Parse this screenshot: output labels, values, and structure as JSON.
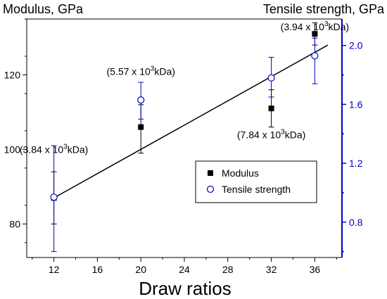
{
  "chart_data": {
    "type": "scatter",
    "xlabel": "Draw ratios",
    "ylabel_left": "Modulus, GPa",
    "ylabel_right": "Tensile strength, GPa",
    "x_ticks": [
      12,
      16,
      20,
      24,
      28,
      32,
      36
    ],
    "xlim": [
      9.5,
      38.5
    ],
    "y_left_ticks": [
      80,
      100,
      120
    ],
    "y_left_lim": [
      71,
      135
    ],
    "y_right_ticks": [
      0.8,
      1.2,
      1.6,
      2.0
    ],
    "y_right_lim": [
      0.56,
      2.18
    ],
    "left_axis_color": "#000000",
    "right_axis_color": "#0000cc",
    "series": [
      {
        "name": "Modulus",
        "axis": "left",
        "marker": "filled-square",
        "color": "#000000",
        "points": [
          {
            "x": 12,
            "y": 87,
            "err_low": 80,
            "err_high": 94
          },
          {
            "x": 20,
            "y": 106,
            "err_low": 99,
            "err_high": 112
          },
          {
            "x": 32,
            "y": 111,
            "err_low": 106,
            "err_high": 116
          },
          {
            "x": 36,
            "y": 131,
            "err_low": 128,
            "err_high": 134
          }
        ]
      },
      {
        "name": "Tensile strength",
        "axis": "right",
        "marker": "open-circle",
        "color": "#0000cc",
        "points": [
          {
            "x": 12,
            "y": 0.97,
            "err_low": 0.6,
            "err_high": 1.32
          },
          {
            "x": 20,
            "y": 1.63,
            "err_low": 1.5,
            "err_high": 1.75
          },
          {
            "x": 32,
            "y": 1.78,
            "err_low": 1.65,
            "err_high": 1.92
          },
          {
            "x": 36,
            "y": 1.93,
            "err_low": 1.74,
            "err_high": 2.05
          }
        ]
      }
    ],
    "trend_line": {
      "axis": "left",
      "x0": 12,
      "y0": 87,
      "x1": 37.2,
      "y1": 128
    },
    "annotations": [
      {
        "text": "(3.84 x 10",
        "sup": "3",
        "suffix": "kDa)",
        "x": 12,
        "y": 99
      },
      {
        "text": "(5.57 x 10",
        "sup": "3",
        "suffix": "kDa)",
        "x": 20,
        "y": 120
      },
      {
        "text": "(7.84 x 10",
        "sup": "3",
        "suffix": "kDa)",
        "x": 32,
        "y": 103
      },
      {
        "text": "(3.94 x 10",
        "sup": "3",
        "suffix": "kDa)",
        "x": 36,
        "y": 132
      }
    ],
    "legend": {
      "placement": "lower-right",
      "entries": [
        "Modulus",
        "Tensile strength"
      ]
    }
  }
}
